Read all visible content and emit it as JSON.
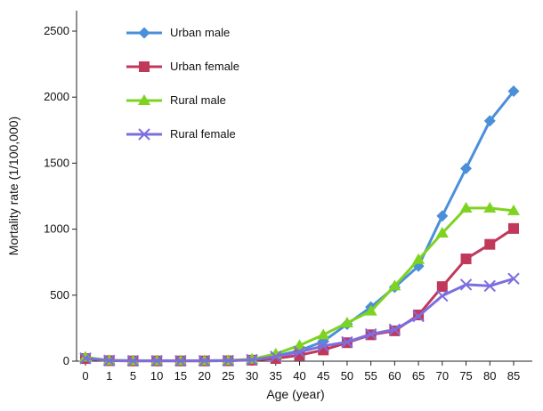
{
  "chart_data": {
    "type": "line",
    "title": "",
    "xlabel": "Age (year)",
    "ylabel": "Mortality rate (1/100,000)",
    "categories": [
      "0",
      "1",
      "5",
      "10",
      "15",
      "20",
      "25",
      "30",
      "35",
      "40",
      "45",
      "50",
      "55",
      "60",
      "65",
      "70",
      "75",
      "80",
      "85"
    ],
    "ylim": [
      0,
      2500
    ],
    "yticks": [
      0,
      500,
      1000,
      1500,
      2000,
      2500
    ],
    "grid": false,
    "legend_position": "top-left",
    "series": [
      {
        "name": "Urban male",
        "color": "#4a8fd9",
        "marker": "diamond",
        "values": [
          25,
          5,
          3,
          3,
          3,
          3,
          4,
          12,
          40,
          80,
          150,
          280,
          410,
          560,
          720,
          1100,
          1460,
          1820,
          2045
        ]
      },
      {
        "name": "Urban female",
        "color": "#c0395a",
        "marker": "square",
        "values": [
          20,
          4,
          2,
          2,
          2,
          2,
          3,
          8,
          20,
          45,
          85,
          140,
          200,
          230,
          350,
          565,
          775,
          885,
          1005
        ]
      },
      {
        "name": "Rural male",
        "color": "#7ed321",
        "marker": "triangle",
        "values": [
          30,
          6,
          4,
          4,
          4,
          4,
          6,
          15,
          55,
          120,
          200,
          290,
          380,
          570,
          770,
          970,
          1160,
          1160,
          1140
        ]
      },
      {
        "name": "Rural female",
        "color": "#7b6fe0",
        "marker": "x",
        "values": [
          22,
          5,
          3,
          3,
          3,
          3,
          4,
          10,
          35,
          70,
          115,
          145,
          205,
          240,
          340,
          495,
          580,
          570,
          625
        ]
      }
    ]
  }
}
